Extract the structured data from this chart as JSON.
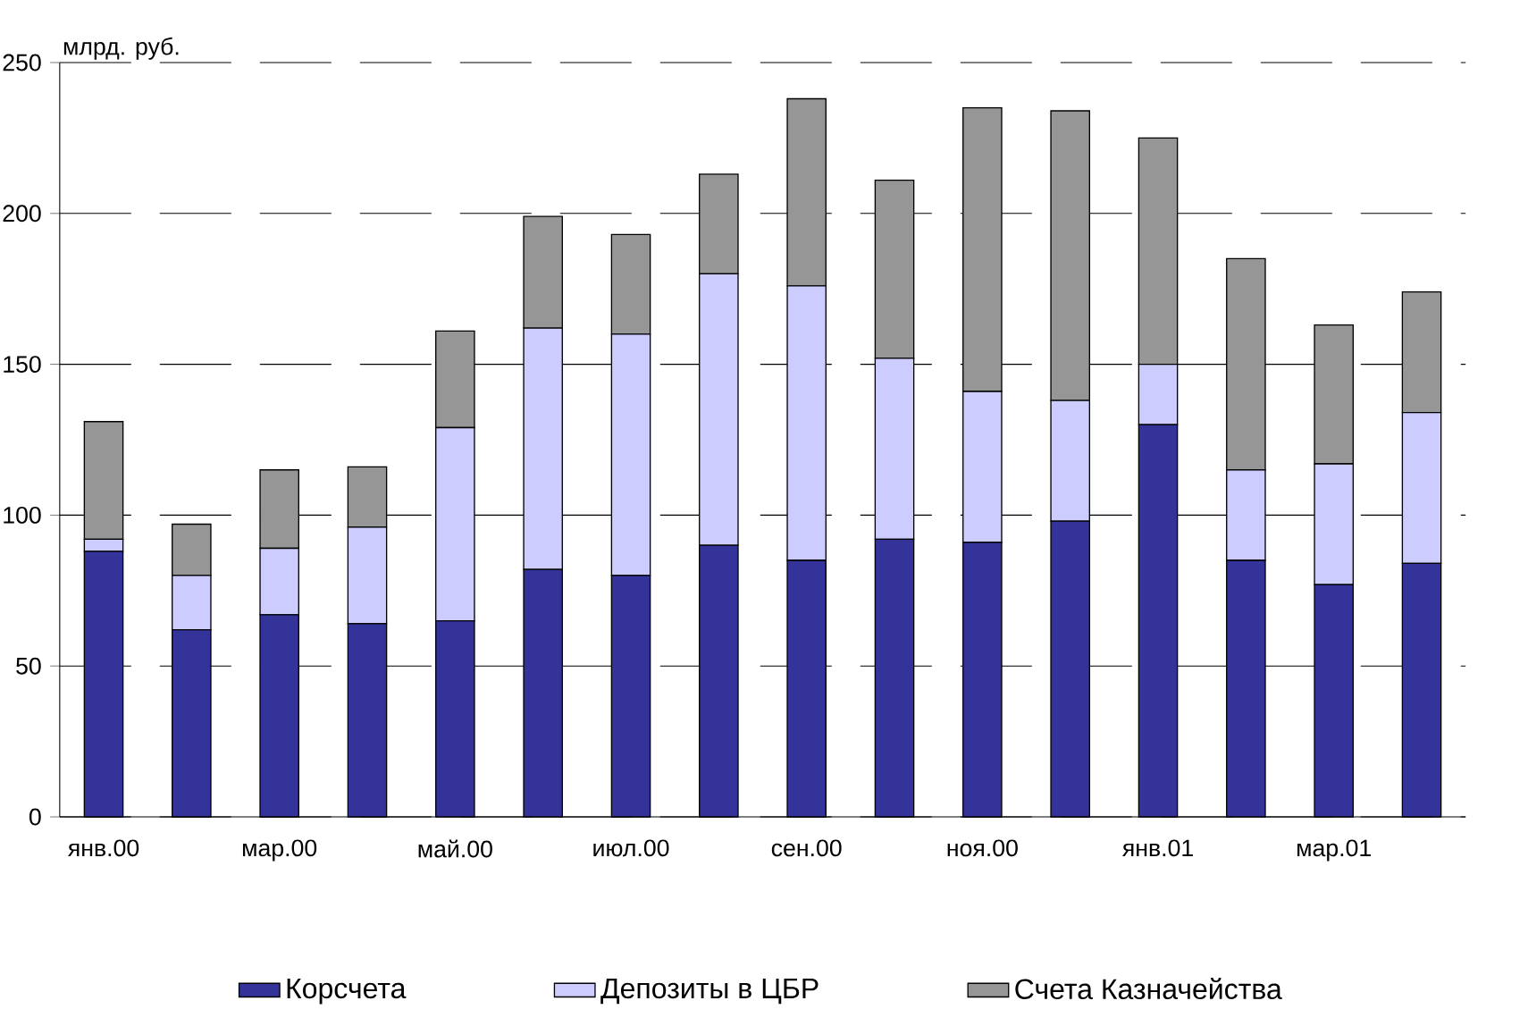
{
  "chart_data": {
    "type": "bar",
    "stacked": true,
    "ylabel": "млрд. руб.",
    "categories": [
      "янв.00",
      null,
      "мар.00",
      null,
      "май.00",
      null,
      "июл.00",
      null,
      "сен.00",
      null,
      "ноя.00",
      null,
      "янв.01",
      null,
      "мар.01",
      null
    ],
    "series": [
      {
        "name": "Корсчета",
        "color": "#333399",
        "values": [
          88,
          62,
          67,
          64,
          65,
          82,
          80,
          90,
          85,
          92,
          91,
          98,
          130,
          85,
          77,
          84
        ]
      },
      {
        "name": "Депозиты в ЦБР",
        "color": "#ccccff",
        "values": [
          4,
          18,
          22,
          32,
          64,
          80,
          80,
          90,
          91,
          60,
          50,
          40,
          20,
          30,
          40,
          50
        ]
      },
      {
        "name": "Счета Казначейства",
        "color": "#969696",
        "values": [
          39,
          17,
          26,
          20,
          32,
          37,
          33,
          33,
          62,
          59,
          94,
          96,
          75,
          70,
          46,
          40
        ]
      }
    ],
    "ylim": [
      0,
      250
    ],
    "yticks": [
      0,
      50,
      100,
      150,
      200,
      250
    ],
    "grid": "y",
    "legend": "bottom"
  }
}
